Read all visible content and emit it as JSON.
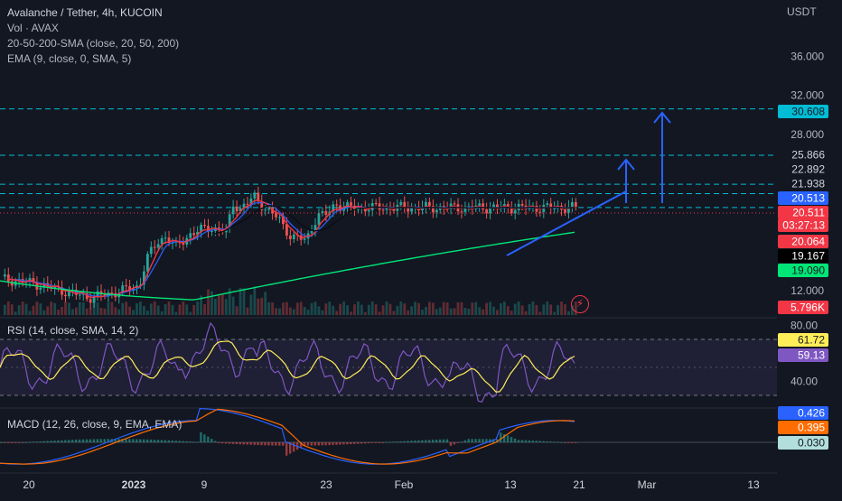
{
  "header": {
    "title": "Avalanche / Tether, 4h, KUCOIN",
    "vol": "Vol · AVAX",
    "sma": "20-50-200-SMA (close, 20, 50, 200)",
    "ema": "EMA (9, close, 0, SMA, 5)",
    "currency": "USDT"
  },
  "rsi_pane": {
    "label": "RSI (14, close, SMA, 14, 2)"
  },
  "macd_pane": {
    "label": "MACD (12, 26, close, 9, EMA, EMA)"
  },
  "colors": {
    "background": "#131722",
    "up": "#26a69a",
    "down": "#ef5350",
    "sma20": "#f23645",
    "sma50": "#131722",
    "sma200": "#00e676",
    "ema": "#2962ff",
    "rsi": "#7e57c2",
    "rsi_ma": "#ffee58",
    "macd": "#2962ff",
    "signal": "#ff6d00",
    "level_line": "#00bcd4",
    "drawing": "#2962ff"
  },
  "price_axis": {
    "ticks": [
      "36.000",
      "32.000",
      "28.000",
      "12.000"
    ]
  },
  "price_labels": [
    {
      "text": "30.608",
      "bg": "#00bcd4",
      "fg": "#131722",
      "price": 30.608
    },
    {
      "text": "25.866",
      "bg": "transparent",
      "fg": "#d1d4dc",
      "price": 25.866
    },
    {
      "text": "22.892",
      "bg": "transparent",
      "fg": "#d1d4dc",
      "price": 22.892
    },
    {
      "text": "21.938",
      "bg": "transparent",
      "fg": "#d1d4dc",
      "price": 21.938
    },
    {
      "text": "20.513",
      "bg": "#2962ff",
      "fg": "#ffffff",
      "price": 20.513
    },
    {
      "text": "20.511",
      "bg": "#f23645",
      "fg": "#ffffff",
      "price": 20.511
    },
    {
      "text": "03:27:13",
      "bg": "#f23645",
      "fg": "#ffffff",
      "price": 19.9
    },
    {
      "text": "20.064",
      "bg": "#f23645",
      "fg": "#ffffff",
      "price": 19.2
    },
    {
      "text": "19.167",
      "bg": "#000000",
      "fg": "#ffffff",
      "price": 18.3
    },
    {
      "text": "19.090",
      "bg": "#00e676",
      "fg": "#131722",
      "price": 17.4
    },
    {
      "text": "5.796K",
      "bg": "#f23645",
      "fg": "#ffffff",
      "price": 11.4
    }
  ],
  "rsi_axis": {
    "ticks": [
      "80.00",
      "40.00"
    ]
  },
  "rsi_labels": [
    {
      "text": "61.72",
      "bg": "#ffee58",
      "fg": "#131722",
      "value": 61.72
    },
    {
      "text": "59.13",
      "bg": "#7e57c2",
      "fg": "#ffffff",
      "value": 59.13
    }
  ],
  "macd_labels": [
    {
      "text": "0.426",
      "bg": "#2962ff",
      "fg": "#ffffff",
      "value": 0.426
    },
    {
      "text": "0.395",
      "bg": "#ff6d00",
      "fg": "#ffffff",
      "value": 0.395
    },
    {
      "text": "0.030",
      "bg": "#b2dfdb",
      "fg": "#131722",
      "value": 0.03
    }
  ],
  "time_axis": {
    "ticks": [
      "20",
      "2023",
      "9",
      "23",
      "Feb",
      "13",
      "21",
      "Mar",
      "13"
    ]
  },
  "chart_data": {
    "type": "line",
    "symbol": "Avalanche / Tether",
    "interval": "4h",
    "exchange": "KUCOIN",
    "x_ticks": [
      "20",
      "2023",
      "9",
      "23",
      "Feb",
      "13",
      "21",
      "Mar",
      "13"
    ],
    "y_ticks": [
      "36.000",
      "32.000",
      "28.000",
      "12.000"
    ],
    "approx_close_path": [
      {
        "x": "Dec 16",
        "close": 13.2
      },
      {
        "x": "Dec 20",
        "close": 12.8
      },
      {
        "x": "Dec 26",
        "close": 12.1
      },
      {
        "x": "Jan 1",
        "close": 11.3
      },
      {
        "x": "Jan 5",
        "close": 11.6
      },
      {
        "x": "Jan 9",
        "close": 12.5
      },
      {
        "x": "Jan 12",
        "close": 15.2
      },
      {
        "x": "Jan 14",
        "close": 17.0
      },
      {
        "x": "Jan 16",
        "close": 17.6
      },
      {
        "x": "Jan 18",
        "close": 16.4
      },
      {
        "x": "Jan 21",
        "close": 17.8
      },
      {
        "x": "Jan 24",
        "close": 18.5
      },
      {
        "x": "Jan 27",
        "close": 18.0
      },
      {
        "x": "Jan 28",
        "close": 21.0
      },
      {
        "x": "Jan 30",
        "close": 20.4
      },
      {
        "x": "Feb 2",
        "close": 21.6
      },
      {
        "x": "Feb 5",
        "close": 20.3
      },
      {
        "x": "Feb 8",
        "close": 19.4
      },
      {
        "x": "Feb 11",
        "close": 17.5
      },
      {
        "x": "Feb 14",
        "close": 17.2
      },
      {
        "x": "Feb 16",
        "close": 19.8
      },
      {
        "x": "Feb 18",
        "close": 19.6
      },
      {
        "x": "Feb 20",
        "close": 20.9
      },
      {
        "x": "Feb 21",
        "close": 20.5
      }
    ],
    "levels": [
      30.608,
      25.866,
      22.892,
      21.938,
      20.513
    ],
    "current_price": 20.511,
    "countdown": "03:27:13",
    "sma20": 20.064,
    "sma50": 19.167,
    "sma200": 19.09,
    "volume": "5.796K",
    "rsi": {
      "value": 61.72,
      "ma": 59.13,
      "upper": 70,
      "lower": 30,
      "ticks": [
        80,
        40
      ]
    },
    "macd": {
      "macd": 0.426,
      "signal": 0.395,
      "histogram": 0.03
    }
  }
}
